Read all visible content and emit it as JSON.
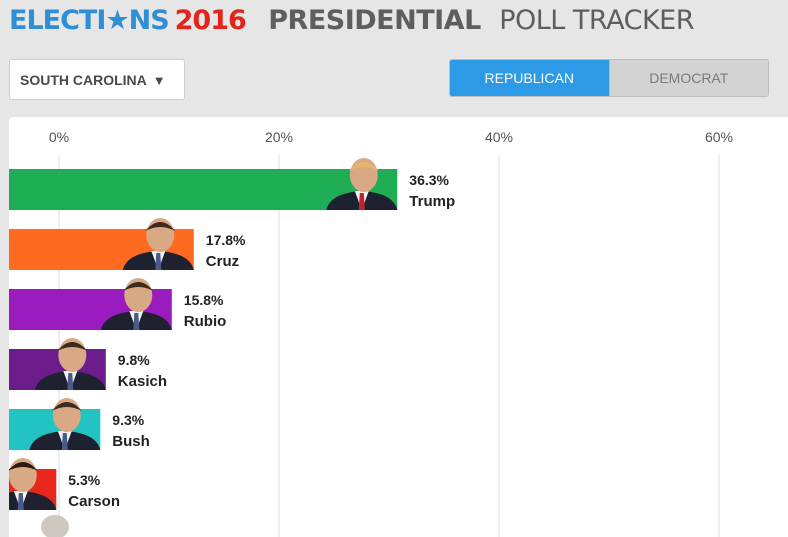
{
  "header": {
    "brand_word": "ELECTI",
    "brand_star": "★",
    "brand_word_end": "NS",
    "brand_year": "2016",
    "title_main": "PRESIDENTIAL",
    "title_sub": "POLL TRACKER"
  },
  "state_selector": {
    "label": "SOUTH CAROLINA",
    "caret": "▼"
  },
  "party_toggle": {
    "options": [
      "REPUBLICAN",
      "DEMOCRAT"
    ],
    "selected": "REPUBLICAN",
    "active_color": "#2d9ae8"
  },
  "chart_data": {
    "type": "bar",
    "orientation": "horizontal",
    "x_ticks": [
      "0%",
      "20%",
      "40%",
      "60%"
    ],
    "xlim": [
      0,
      60
    ],
    "grid": true,
    "categories": [
      "Trump",
      "Cruz",
      "Rubio",
      "Kasich",
      "Bush",
      "Carson"
    ],
    "values": [
      36.3,
      17.8,
      15.8,
      9.8,
      9.3,
      5.3
    ],
    "value_labels": [
      "36.3%",
      "17.8%",
      "15.8%",
      "9.8%",
      "9.3%",
      "5.3%"
    ],
    "colors": [
      "#1fae55",
      "#ff6a21",
      "#9a1cbf",
      "#6d1c8c",
      "#22c3c3",
      "#e8261c"
    ],
    "avatar_icons": [
      "trump-photo",
      "cruz-photo",
      "rubio-photo",
      "kasich-photo",
      "bush-photo",
      "carson-photo"
    ]
  }
}
